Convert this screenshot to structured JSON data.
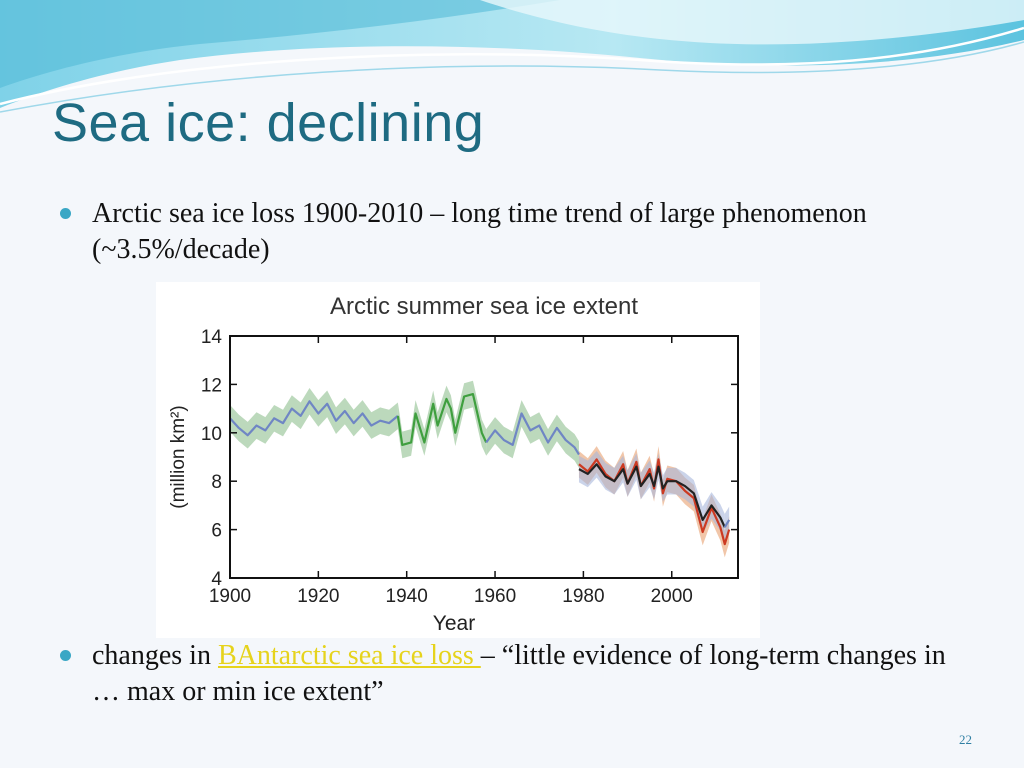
{
  "slide": {
    "title": "Sea ice: declining",
    "bullet1": "Arctic sea ice loss 1900-2010 – long time trend of large phenomenon (~3.5%/decade)",
    "bullet2_prefix": "changes in ",
    "bullet2_link": "BAntarctic sea ice loss ",
    "bullet2_suffix": "– “little evidence of long-term changes in … max or min ice extent”",
    "page_number": "22",
    "colors": {
      "title": "#1e6b82",
      "bullet": "#3aa7c5",
      "link": "#e6d31c"
    }
  },
  "chart_data": {
    "type": "line",
    "title": "Arctic summer sea ice extent",
    "xlabel": "Year",
    "ylabel": "(million km²)",
    "xlim": [
      1900,
      2015
    ],
    "ylim": [
      4,
      14
    ],
    "x_ticks": [
      1900,
      1920,
      1940,
      1960,
      1980,
      2000
    ],
    "y_ticks": [
      4,
      6,
      8,
      10,
      12,
      14
    ],
    "grid": false,
    "series": [
      {
        "color": "#6f86c4",
        "band_color": "#8fbf8f",
        "points": [
          [
            1900,
            10.6
          ],
          [
            1902,
            10.2
          ],
          [
            1904,
            9.9
          ],
          [
            1906,
            10.3
          ],
          [
            1908,
            10.1
          ],
          [
            1910,
            10.6
          ],
          [
            1912,
            10.4
          ],
          [
            1914,
            11.0
          ],
          [
            1916,
            10.7
          ],
          [
            1918,
            11.3
          ],
          [
            1920,
            10.8
          ],
          [
            1922,
            11.2
          ],
          [
            1924,
            10.5
          ],
          [
            1926,
            10.9
          ],
          [
            1928,
            10.4
          ],
          [
            1930,
            10.8
          ],
          [
            1932,
            10.3
          ],
          [
            1934,
            10.5
          ],
          [
            1936,
            10.4
          ],
          [
            1938,
            10.7
          ]
        ]
      },
      {
        "color": "#3f9f3f",
        "band_color": "#8fbf8f",
        "points": [
          [
            1938,
            10.7
          ],
          [
            1939,
            9.5
          ],
          [
            1941,
            9.6
          ],
          [
            1942,
            10.8
          ],
          [
            1944,
            9.6
          ],
          [
            1946,
            11.2
          ],
          [
            1947,
            10.3
          ],
          [
            1949,
            11.4
          ],
          [
            1950,
            11.0
          ],
          [
            1951,
            10.0
          ],
          [
            1953,
            11.5
          ],
          [
            1955,
            11.6
          ],
          [
            1957,
            10.0
          ],
          [
            1958,
            9.6
          ]
        ]
      },
      {
        "color": "#6f86c4",
        "band_color": "#8fbf8f",
        "points": [
          [
            1958,
            9.6
          ],
          [
            1960,
            10.1
          ],
          [
            1962,
            9.7
          ],
          [
            1964,
            9.5
          ],
          [
            1966,
            10.8
          ],
          [
            1968,
            10.1
          ],
          [
            1970,
            10.3
          ],
          [
            1972,
            9.6
          ],
          [
            1974,
            10.2
          ],
          [
            1976,
            9.7
          ],
          [
            1978,
            9.4
          ],
          [
            1979,
            9.1
          ]
        ]
      },
      {
        "color": "#cc3a22",
        "band_color": "#e8a070",
        "points": [
          [
            1979,
            8.7
          ],
          [
            1981,
            8.4
          ],
          [
            1983,
            8.9
          ],
          [
            1985,
            8.3
          ],
          [
            1987,
            8.0
          ],
          [
            1989,
            8.7
          ],
          [
            1990,
            7.9
          ],
          [
            1992,
            8.8
          ],
          [
            1993,
            7.8
          ],
          [
            1995,
            8.5
          ],
          [
            1996,
            7.7
          ],
          [
            1997,
            8.9
          ],
          [
            1998,
            7.5
          ],
          [
            1999,
            8.1
          ],
          [
            2001,
            8.0
          ],
          [
            2003,
            7.6
          ],
          [
            2005,
            7.3
          ],
          [
            2007,
            5.9
          ],
          [
            2009,
            6.9
          ],
          [
            2011,
            6.1
          ],
          [
            2012,
            5.4
          ],
          [
            2013,
            6.0
          ]
        ]
      },
      {
        "color": "#222222",
        "band_color": "#a9b8dc",
        "points": [
          [
            1979,
            8.5
          ],
          [
            1981,
            8.3
          ],
          [
            1983,
            8.7
          ],
          [
            1985,
            8.2
          ],
          [
            1987,
            8.0
          ],
          [
            1989,
            8.5
          ],
          [
            1990,
            7.9
          ],
          [
            1992,
            8.6
          ],
          [
            1993,
            7.8
          ],
          [
            1995,
            8.3
          ],
          [
            1996,
            7.8
          ],
          [
            1997,
            8.6
          ],
          [
            1998,
            7.7
          ],
          [
            1999,
            8.0
          ],
          [
            2001,
            8.0
          ],
          [
            2003,
            7.8
          ],
          [
            2005,
            7.5
          ],
          [
            2007,
            6.4
          ],
          [
            2009,
            7.0
          ],
          [
            2011,
            6.5
          ],
          [
            2012,
            6.1
          ]
        ]
      },
      {
        "color": "#6f86c4",
        "band_color": "#a9b8dc",
        "points": [
          [
            2012,
            6.1
          ],
          [
            2013,
            6.4
          ]
        ]
      }
    ]
  }
}
